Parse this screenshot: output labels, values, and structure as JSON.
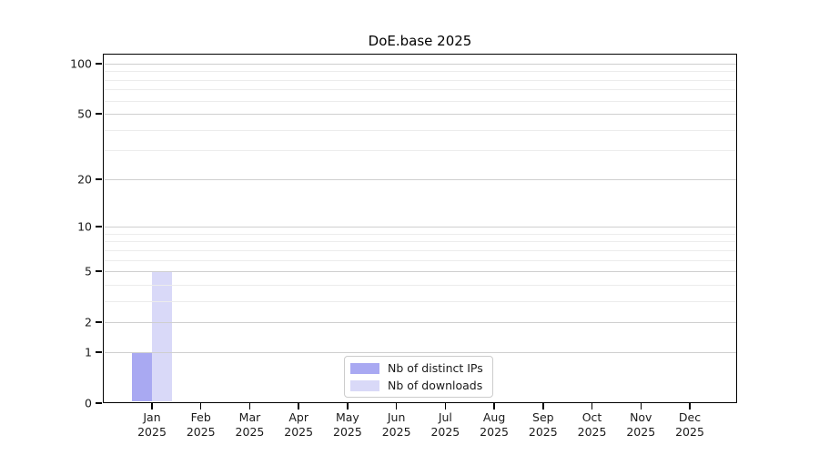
{
  "chart_data": {
    "type": "bar",
    "title": "DoE.base 2025",
    "y_scale": "log10(value+1)",
    "categories": [
      "Jan",
      "Feb",
      "Mar",
      "Apr",
      "May",
      "Jun",
      "Jul",
      "Aug",
      "Sep",
      "Oct",
      "Nov",
      "Dec"
    ],
    "x_year_label": "2025",
    "series": [
      {
        "name": "Nb of distinct IPs",
        "color": "#a9a9f2",
        "values": [
          1,
          0,
          0,
          0,
          0,
          0,
          0,
          0,
          0,
          0,
          0,
          0
        ]
      },
      {
        "name": "Nb of downloads",
        "color": "#d9d9f8",
        "values": [
          5,
          0,
          0,
          0,
          0,
          0,
          0,
          0,
          0,
          0,
          0,
          0
        ]
      }
    ],
    "yticks": [
      0,
      1,
      2,
      5,
      10,
      20,
      50,
      100
    ],
    "minor_yticks": [
      3,
      4,
      6,
      7,
      8,
      9,
      30,
      40,
      60,
      70,
      80,
      90
    ],
    "ylim": [
      0,
      110
    ],
    "grid": true,
    "legend_position": "bottom-center",
    "colors": {
      "grid_major": "#cfcfcf",
      "grid_minor": "#ececec",
      "spine": "#000000",
      "text": "#1a1a1a",
      "background": "#ffffff"
    }
  }
}
